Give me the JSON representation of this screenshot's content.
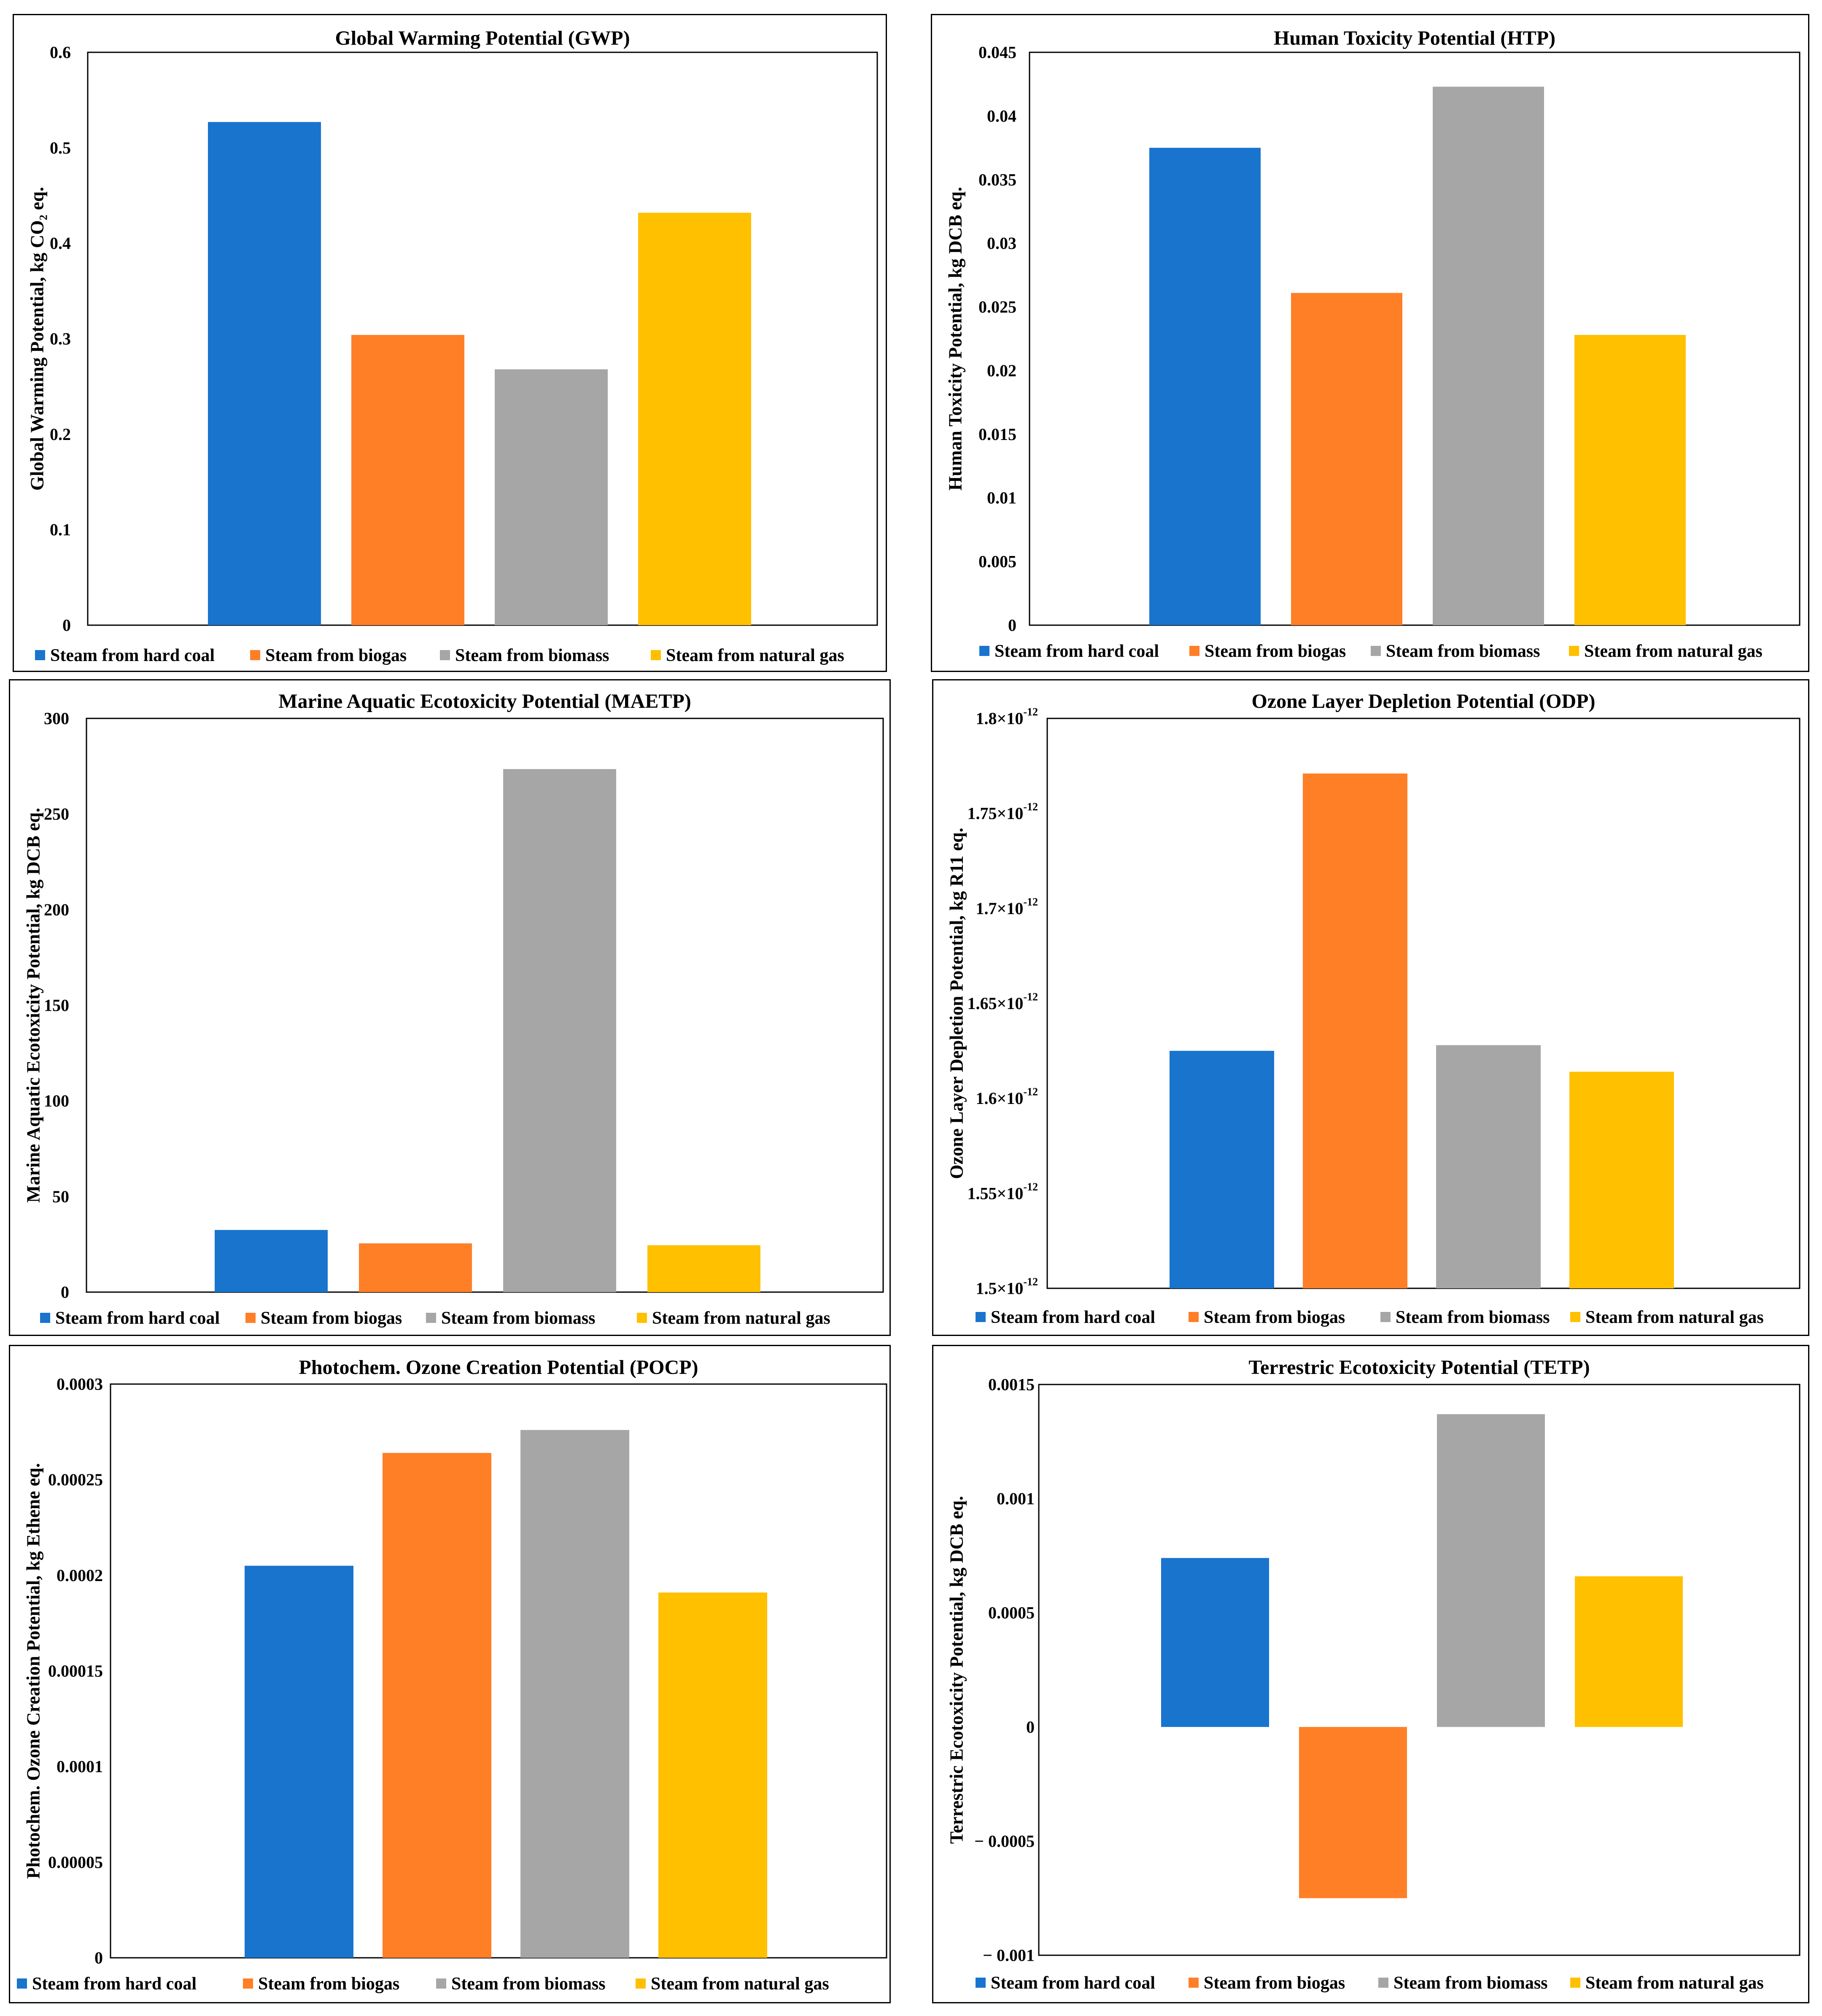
{
  "legend_labels": [
    "Steam from hard coal",
    "Steam from biogas",
    "Steam from biomass",
    "Steam from natural gas"
  ],
  "colors": [
    "#1874CD",
    "#FF7F27",
    "#A6A6A6",
    "#FFC000"
  ],
  "chart_data": [
    {
      "type": "bar",
      "title": "Global Warming Potential (GWP)",
      "ylabel": "Global Warming Potential, kg CO₂ eq.",
      "categories": [
        "Steam from hard coal",
        "Steam from biogas",
        "Steam from biomass",
        "Steam from natural gas"
      ],
      "values": [
        0.527,
        0.304,
        0.268,
        0.432
      ],
      "ylim": [
        0,
        0.6
      ],
      "yticks": [
        0,
        0.1,
        0.2,
        0.3,
        0.4,
        0.5,
        0.6
      ],
      "ytick_labels": [
        "0",
        "0.1",
        "0.2",
        "0.3",
        "0.4",
        "0.5",
        "0.6"
      ],
      "grid": false,
      "legend": "bottom"
    },
    {
      "type": "bar",
      "title": "Human Toxicity Potential (HTP)",
      "ylabel": "Human Toxicity Potential, kg DCB eq.",
      "categories": [
        "Steam from hard coal",
        "Steam from biogas",
        "Steam from biomass",
        "Steam from natural gas"
      ],
      "values": [
        0.0375,
        0.0261,
        0.0423,
        0.0228
      ],
      "ylim": [
        0,
        0.045
      ],
      "yticks": [
        0,
        0.005,
        0.01,
        0.015,
        0.02,
        0.025,
        0.03,
        0.035,
        0.04,
        0.045
      ],
      "ytick_labels": [
        "0",
        "0.005",
        "0.01",
        "0.015",
        "0.02",
        "0.025",
        "0.03",
        "0.035",
        "0.04",
        "0.045"
      ],
      "grid": false,
      "legend": "bottom"
    },
    {
      "type": "bar",
      "title": "Marine Aquatic Ecotoxicity Potential (MAETP)",
      "ylabel": "Marine Aquatic Ecotoxicity Potential, kg DCB eq.",
      "categories": [
        "Steam from hard coal",
        "Steam from biogas",
        "Steam from biomass",
        "Steam from natural gas"
      ],
      "values": [
        32.5,
        25.5,
        273.5,
        24.5
      ],
      "ylim": [
        0,
        300
      ],
      "yticks": [
        0,
        50,
        100,
        150,
        200,
        250,
        300
      ],
      "ytick_labels": [
        "0",
        "50",
        "100",
        "150",
        "200",
        "250",
        "300"
      ],
      "grid": false,
      "legend": "bottom"
    },
    {
      "type": "bar",
      "title": "Ozone Layer Depletion Potential (ODP)",
      "ylabel": "Ozone Layer Depletion Potential, kg R11 eq.",
      "categories": [
        "Steam from hard coal",
        "Steam from biogas",
        "Steam from biomass",
        "Steam from natural gas"
      ],
      "values": [
        1.625e-12,
        1.771e-12,
        1.628e-12,
        1.614e-12
      ],
      "ylim": [
        1.5e-12,
        1.8e-12
      ],
      "yticks": [
        1.5e-12,
        1.55e-12,
        1.6e-12,
        1.65e-12,
        1.7e-12,
        1.75e-12,
        1.8e-12
      ],
      "ytick_labels": [
        "1.5×10",
        "1.55×10",
        "1.6×10",
        "1.65×10",
        "1.7×10",
        "1.75×10",
        "1.8×10"
      ],
      "ytick_exponent": "-12",
      "grid": false,
      "legend": "bottom"
    },
    {
      "type": "bar",
      "title": "Photochem. Ozone Creation Potential (POCP)",
      "ylabel": "Photochem. Ozone Creation Potential, kg Ethene eq.",
      "categories": [
        "Steam from hard coal",
        "Steam from biogas",
        "Steam from biomass",
        "Steam from natural gas"
      ],
      "values": [
        0.000205,
        0.000264,
        0.000276,
        0.000191
      ],
      "ylim": [
        0,
        0.0003
      ],
      "yticks": [
        0,
        5e-05,
        0.0001,
        0.00015,
        0.0002,
        0.00025,
        0.0003
      ],
      "ytick_labels": [
        "0",
        "0.00005",
        "0.0001",
        "0.00015",
        "0.0002",
        "0.00025",
        "0.0003"
      ],
      "grid": false,
      "legend": "bottom"
    },
    {
      "type": "bar",
      "title": "Terrestric Ecotoxicity Potential (TETP)",
      "ylabel": "Terrestric Ecotoxicity Potential, kg DCB eq.",
      "categories": [
        "Steam from hard coal",
        "Steam from biogas",
        "Steam from biomass",
        "Steam from natural gas"
      ],
      "values": [
        0.00074,
        -0.00075,
        0.00137,
        0.00066
      ],
      "ylim": [
        -0.001,
        0.0015
      ],
      "yticks": [
        -0.001,
        -0.0005,
        0,
        0.0005,
        0.001,
        0.0015
      ],
      "ytick_labels": [
        "− 0.001",
        "− 0.0005",
        "0",
        "0.0005",
        "0.001",
        "0.0015"
      ],
      "grid": false,
      "legend": "bottom"
    }
  ]
}
